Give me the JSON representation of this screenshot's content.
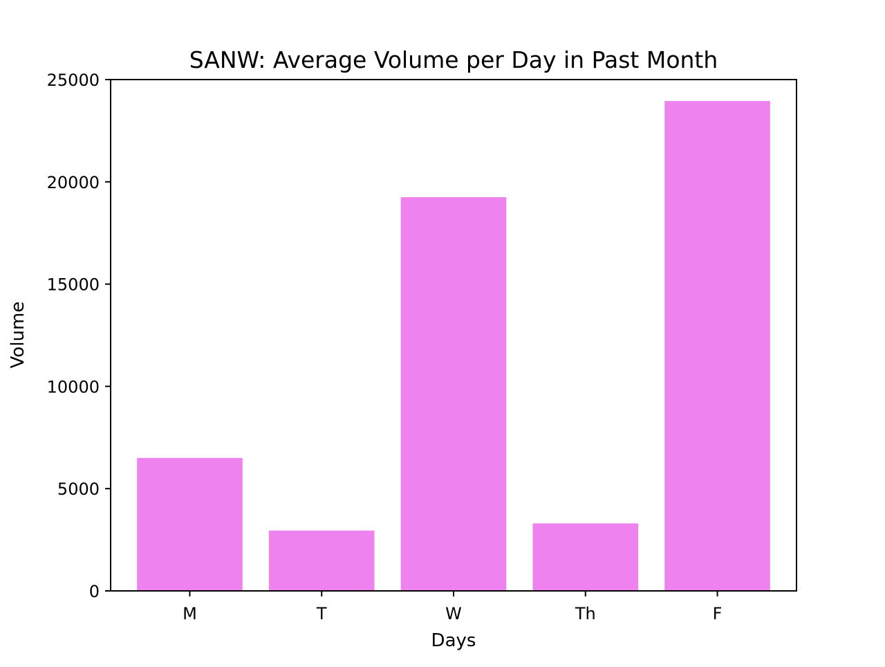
{
  "chart_data": {
    "type": "bar",
    "title": "SANW: Average Volume per Day in Past Month",
    "xlabel": "Days",
    "ylabel": "Volume",
    "categories": [
      "M",
      "T",
      "W",
      "Th",
      "F"
    ],
    "values": [
      6500,
      2950,
      19250,
      3300,
      23950
    ],
    "ylim": [
      0,
      25000
    ],
    "yticks": [
      0,
      5000,
      10000,
      15000,
      20000,
      25000
    ],
    "ytick_labels": [
      "0",
      "5000",
      "10000",
      "15000",
      "20000",
      "25000"
    ],
    "grid": false,
    "legend": "none",
    "bar_color": "#EE82EE"
  }
}
